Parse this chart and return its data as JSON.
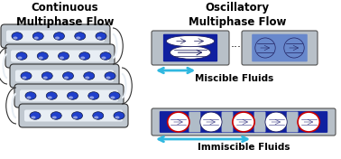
{
  "title_left": "Continuous\nMultiphase Flow",
  "title_right": "Oscillatory\nMultiphase Flow",
  "label_miscible": "Miscible Fluids",
  "label_immiscible": "Immiscible Fluids",
  "bg_color": "#ffffff",
  "tube_gray": "#b8c0c8",
  "tube_light_gray": "#c8d0d8",
  "blue_dark": "#1020a0",
  "blue_medium": "#3050c0",
  "blue_light": "#6888cc",
  "blue_blob": "#2040cc",
  "blue_blob_light": "#4060e0",
  "red_outline": "#cc0000",
  "cyan_arrow": "#30b8e0",
  "white": "#ffffff",
  "title_fontsize": 8.5,
  "label_fontsize": 7.5,
  "coil_outer": "#c0c8d0",
  "coil_inner": "#e8eef4",
  "coil_edge": "#303030"
}
